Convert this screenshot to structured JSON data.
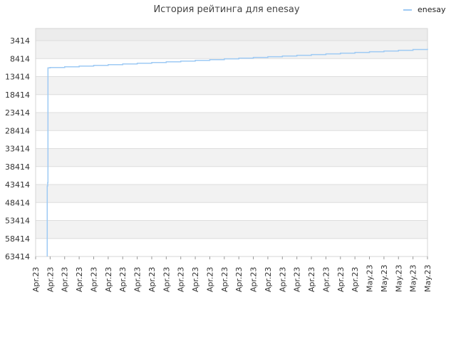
{
  "chart_data": {
    "type": "line",
    "title": "История рейтинга для enesay",
    "legend": {
      "position": "top-right",
      "entries": [
        "enesay"
      ]
    },
    "colors": {
      "line": "#9ecaf4",
      "band_odd": "#f2f2f2",
      "band_even": "#ffffff",
      "top_band": "#ececec",
      "gridline": "#dddddd",
      "axis_border": "#d6d6d6"
    },
    "y_axis": {
      "inverted": true,
      "ticks": [
        3414,
        8414,
        13414,
        18414,
        23414,
        28414,
        33414,
        38414,
        43414,
        48414,
        53414,
        58414,
        63414
      ],
      "tick_labels": [
        "3414",
        "8414",
        "13414",
        "18414",
        "23414",
        "28414",
        "33414",
        "38414",
        "43414",
        "48414",
        "53414",
        "58414",
        "63414"
      ],
      "ylim": [
        63414,
        0
      ]
    },
    "x_axis": {
      "tick_labels": [
        "Apr.23",
        "Apr.23",
        "Apr.23",
        "Apr.23",
        "Apr.23",
        "Apr.23",
        "Apr.23",
        "Apr.23",
        "Apr.23",
        "Apr.23",
        "Apr.23",
        "Apr.23",
        "Apr.23",
        "Apr.23",
        "Apr.23",
        "Apr.23",
        "Apr.23",
        "Apr.23",
        "Apr.23",
        "Apr.23",
        "Apr.23",
        "Apr.23",
        "Apr.23",
        "May.23",
        "May.23",
        "May.23",
        "May.23",
        "May.23"
      ]
    },
    "series": [
      {
        "name": "enesay",
        "x": [
          0.8,
          0.8,
          0.83,
          0.85,
          1.0,
          2.0,
          3.0,
          4.0,
          5.0,
          6.0,
          7.0,
          8.0,
          9.0,
          10.0,
          11.0,
          12.0,
          13.0,
          14.0,
          15.0,
          16.0,
          17.0,
          18.0,
          19.0,
          20.0,
          21.0,
          22.0,
          23.0,
          24.0,
          25.0,
          26.0,
          27.0
        ],
        "values": [
          63414,
          43800,
          42900,
          11000,
          10900,
          10700,
          10500,
          10300,
          10100,
          9900,
          9700,
          9500,
          9300,
          9100,
          8900,
          8700,
          8500,
          8300,
          8100,
          7900,
          7700,
          7500,
          7300,
          7100,
          6900,
          6700,
          6500,
          6300,
          6100,
          5900,
          5700
        ]
      }
    ]
  }
}
